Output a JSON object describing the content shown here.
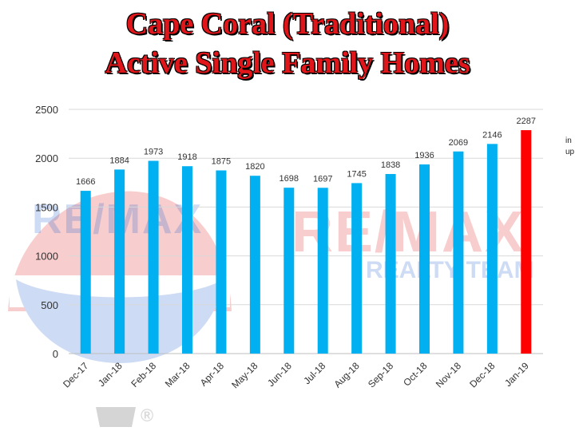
{
  "header": {
    "title_line1": "Cape Coral (Traditional)",
    "title_line2": "Active Single Family Homes"
  },
  "side_note": "in\nup",
  "watermark": {
    "brand": "RE/MAX",
    "sub": "REALTY TEAM",
    "registered": "®"
  },
  "colors": {
    "bar": "#00b0f0",
    "highlight_bar": "#ff0000",
    "title": "#e0161b",
    "grid": "#d9d9d9"
  },
  "chart_data": {
    "type": "bar",
    "categories": [
      "Dec-17",
      "Jan-18",
      "Feb-18",
      "Mar-18",
      "Apr-18",
      "May-18",
      "Jun-18",
      "Jul-18",
      "Aug-18",
      "Sep-18",
      "Oct-18",
      "Nov-18",
      "Dec-18",
      "Jan-19"
    ],
    "values": [
      1666,
      1884,
      1973,
      1918,
      1875,
      1820,
      1698,
      1697,
      1745,
      1838,
      1936,
      2069,
      2146,
      2287
    ],
    "highlight_category": "Jan-19",
    "ylim": [
      0,
      2500
    ],
    "yticks": [
      0,
      500,
      1000,
      1500,
      2000,
      2500
    ],
    "grid": true,
    "legend": "none",
    "title": "Cape Coral (Traditional) Active Single Family Homes",
    "xlabel": "",
    "ylabel": ""
  }
}
